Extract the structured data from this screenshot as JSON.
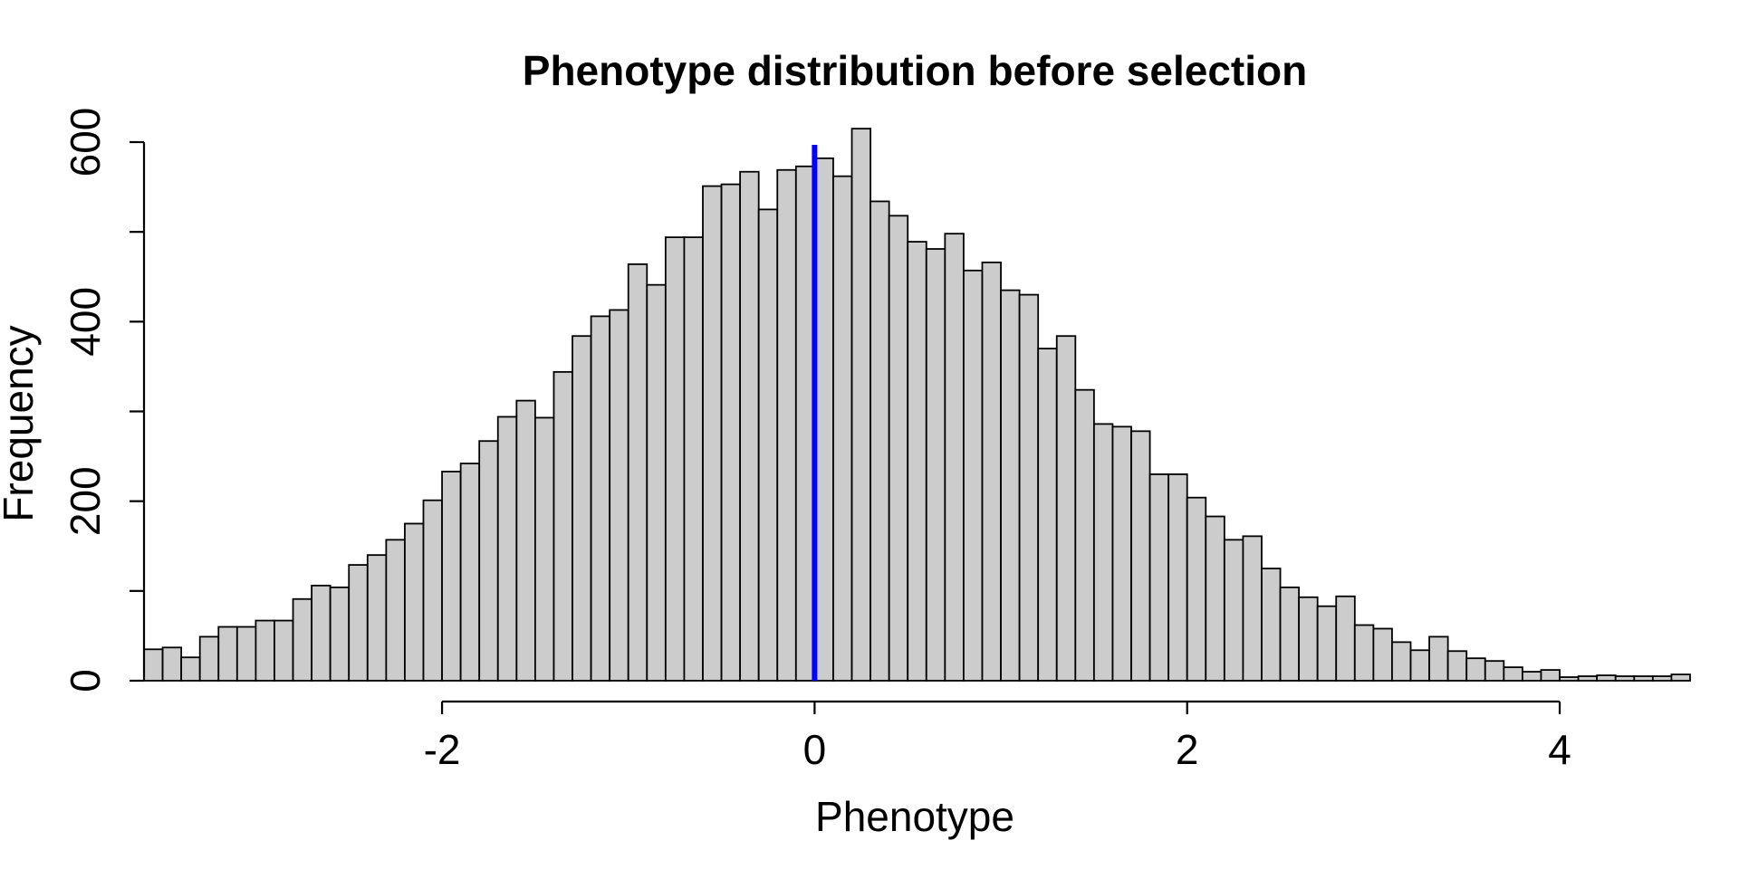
{
  "chart_data": {
    "type": "bar",
    "title": "Phenotype distribution before selection",
    "xlabel": "Phenotype",
    "ylabel": "Frequency",
    "bin_start": -3.6,
    "bin_width": 0.1,
    "values": [
      35,
      37,
      26,
      49,
      60,
      60,
      67,
      67,
      91,
      106,
      104,
      129,
      140,
      157,
      175,
      201,
      233,
      242,
      267,
      294,
      312,
      293,
      344,
      384,
      406,
      413,
      464,
      441,
      494,
      494,
      551,
      553,
      567,
      525,
      569,
      573,
      582,
      562,
      615,
      534,
      518,
      489,
      481,
      498,
      457,
      466,
      435,
      430,
      370,
      384,
      324,
      286,
      283,
      278,
      230,
      230,
      204,
      183,
      157,
      161,
      125,
      104,
      93,
      83,
      94,
      62,
      58,
      43,
      34,
      49,
      33,
      25,
      22,
      15,
      10,
      12,
      4,
      5,
      6,
      5,
      5,
      5,
      7
    ],
    "xlim": [
      -3.6,
      4.7
    ],
    "ylim": [
      0,
      640
    ],
    "xticks": [
      -2,
      0,
      2,
      4
    ],
    "xtick_labels": [
      "-2",
      "0",
      "2",
      "4"
    ],
    "yticks": [
      0,
      100,
      200,
      300,
      400,
      500,
      600
    ],
    "ytick_labels": [
      "0",
      "",
      "200",
      "",
      "400",
      "",
      "600"
    ],
    "reference_line": {
      "x": 0,
      "color": "#0000ff"
    },
    "bar_fill": "#cccccc",
    "grid": false,
    "legend": "none"
  }
}
